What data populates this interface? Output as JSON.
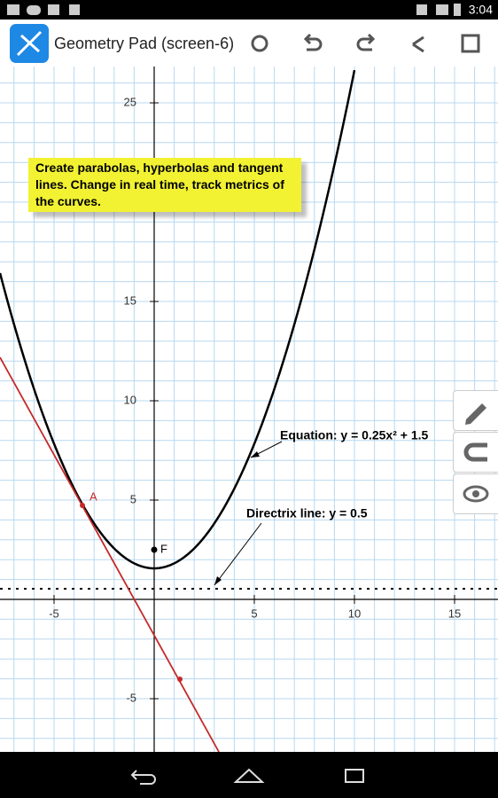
{
  "status_bar": {
    "time": "3:04"
  },
  "app_bar": {
    "title": "Geometry Pad (screen-6)"
  },
  "graph": {
    "xticks": [
      -5,
      5,
      10,
      15
    ],
    "yticks": [
      25,
      15,
      10,
      5,
      -5
    ],
    "points": [
      {
        "label": "A"
      },
      {
        "label": "F"
      }
    ],
    "note": "Create parabolas, hyperbolas and tangent lines. Change in real time, track metrics of the curves.",
    "annotations": [
      "Equation: y = 0.25x² + 1.5",
      "Directrix line: y = 0.5"
    ]
  }
}
